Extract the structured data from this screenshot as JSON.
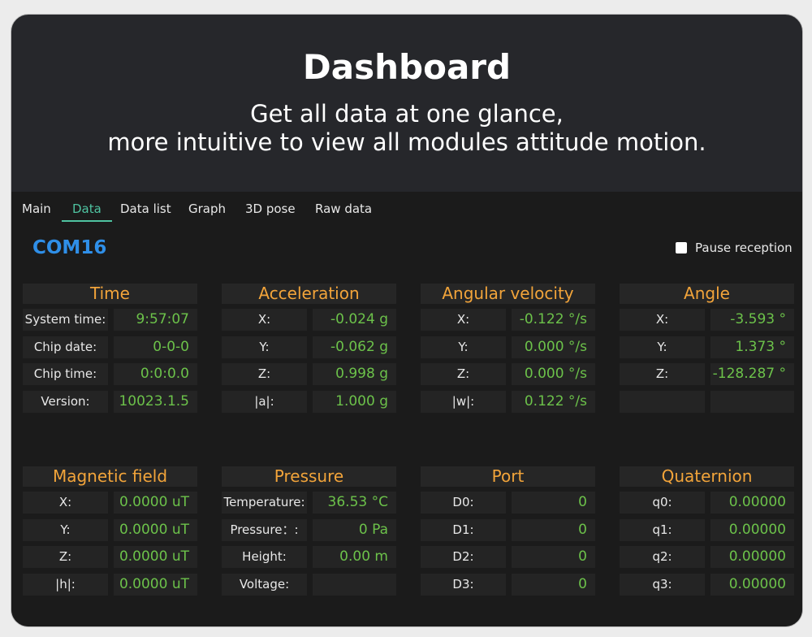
{
  "header": {
    "title": "Dashboard",
    "subtitle_lines": [
      "Get all data at one glance,",
      "more intuitive to view all modules attitude motion."
    ]
  },
  "tabs": [
    "Main",
    "Data",
    "Data list",
    "Graph",
    "3D pose",
    "Raw data"
  ],
  "active_tab": 1,
  "port": "COM16",
  "pause_label": "Pause reception",
  "panels": [
    {
      "title": "Time",
      "rows": [
        {
          "label": "System time:",
          "value": "9:57:07"
        },
        {
          "label": "Chip date:",
          "value": "0-0-0"
        },
        {
          "label": "Chip time:",
          "value": "0:0:0.0"
        },
        {
          "label": "Version:",
          "value": "10023.1.5"
        }
      ]
    },
    {
      "title": "Acceleration",
      "rows": [
        {
          "label": "X:",
          "value": "-0.024 g"
        },
        {
          "label": "Y:",
          "value": "-0.062 g"
        },
        {
          "label": "Z:",
          "value": "0.998 g"
        },
        {
          "label": "|a|:",
          "value": "1.000 g"
        }
      ]
    },
    {
      "title": "Angular velocity",
      "rows": [
        {
          "label": "X:",
          "value": "-0.122 °/s"
        },
        {
          "label": "Y:",
          "value": "0.000 °/s"
        },
        {
          "label": "Z:",
          "value": "0.000 °/s"
        },
        {
          "label": "|w|:",
          "value": "0.122 °/s"
        }
      ]
    },
    {
      "title": "Angle",
      "rows": [
        {
          "label": "X:",
          "value": "-3.593 °"
        },
        {
          "label": "Y:",
          "value": "1.373 °"
        },
        {
          "label": "Z:",
          "value": "-128.287 °"
        }
      ]
    },
    {
      "title": "Magnetic field",
      "rows": [
        {
          "label": "X:",
          "value": "0.0000 uT"
        },
        {
          "label": "Y:",
          "value": "0.0000 uT"
        },
        {
          "label": "Z:",
          "value": "0.0000 uT"
        },
        {
          "label": "|h|:",
          "value": "0.0000 uT"
        }
      ]
    },
    {
      "title": "Pressure",
      "rows": [
        {
          "label": "Temperature:",
          "value": "36.53 °C"
        },
        {
          "label": "Pressure：:",
          "value": "0 Pa"
        },
        {
          "label": "Height:",
          "value": "0.00 m"
        },
        {
          "label": "Voltage:"
        }
      ]
    },
    {
      "title": "Port",
      "rows": [
        {
          "label": "D0:",
          "value": "0"
        },
        {
          "label": "D1:",
          "value": "0"
        },
        {
          "label": "D2:",
          "value": "0"
        },
        {
          "label": "D3:",
          "value": "0"
        }
      ]
    },
    {
      "title": "Quaternion",
      "rows": [
        {
          "label": "q0:",
          "value": "0.00000"
        },
        {
          "label": "q1:",
          "value": "0.00000"
        },
        {
          "label": "q2:",
          "value": "0.00000"
        },
        {
          "label": "q3:",
          "value": "0.00000"
        }
      ]
    }
  ]
}
